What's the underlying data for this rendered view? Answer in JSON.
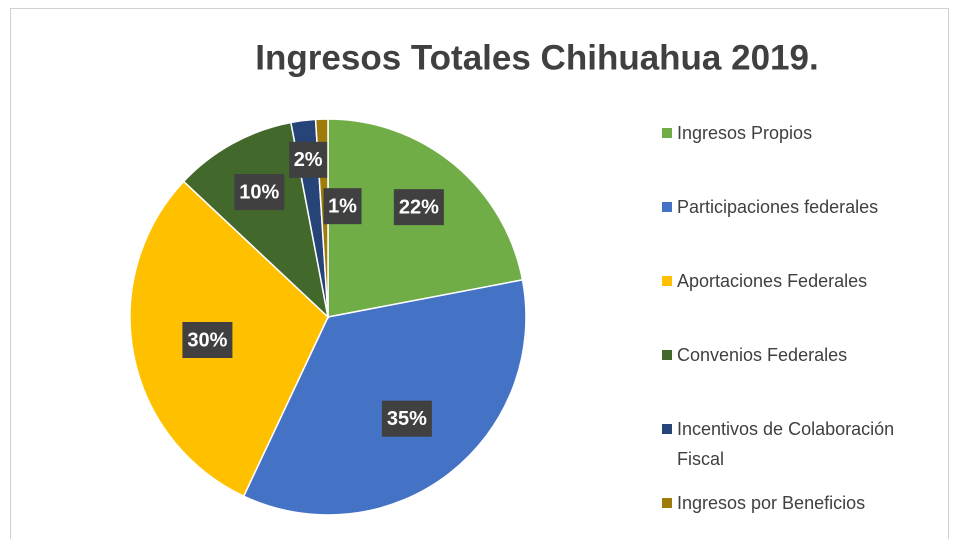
{
  "chart_data": {
    "type": "pie",
    "title": "Ingresos Totales Chihuahua 2019.",
    "categories": [
      "Ingresos Propios",
      "Participaciones federales",
      "Aportaciones Federales",
      "Convenios Federales",
      "Incentivos de Colaboración Fiscal",
      "Ingresos por Beneficios"
    ],
    "values": [
      22,
      35,
      30,
      10,
      2,
      1
    ],
    "value_labels": [
      "22%",
      "35%",
      "30%",
      "10%",
      "2%",
      "1%"
    ],
    "colors": [
      "#70ad47",
      "#4472c4",
      "#ffc000",
      "#43682b",
      "#264478",
      "#9e7b0a"
    ],
    "legend": "right"
  }
}
